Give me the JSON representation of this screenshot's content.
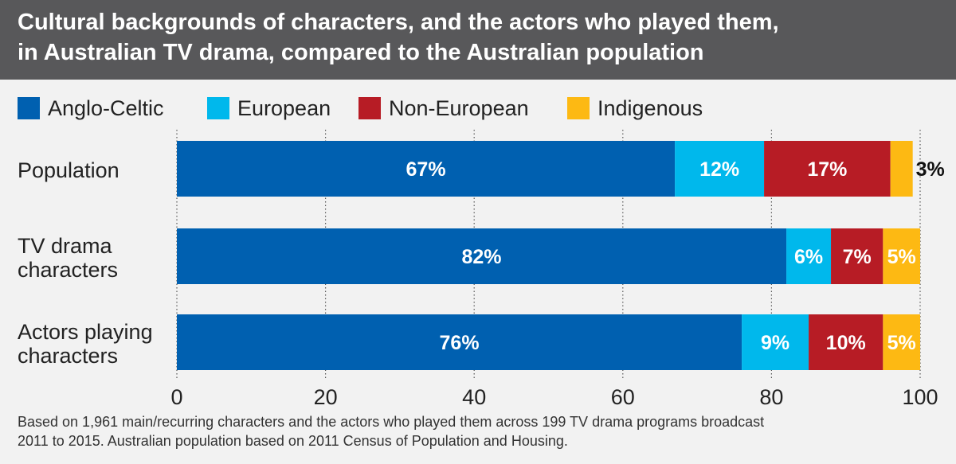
{
  "header": {
    "title_line1": "Cultural backgrounds of characters, and the actors who played them,",
    "title_line2": "in Australian TV drama, compared to the Australian population"
  },
  "colors": {
    "header_bg": "#58585a",
    "anglo_celtic": "#0060b0",
    "european": "#00b8ec",
    "non_european": "#b71c25",
    "indigenous": "#fdb913",
    "gridline": "#555555"
  },
  "legend": [
    {
      "label": "Anglo-Celtic",
      "color": "#0060b0"
    },
    {
      "label": "European",
      "color": "#00b8ec"
    },
    {
      "label": "Non-European",
      "color": "#b71c25"
    },
    {
      "label": "Indigenous",
      "color": "#fdb913"
    }
  ],
  "rows": [
    {
      "label_line1": "Population",
      "label_line2": ""
    },
    {
      "label_line1": "TV drama",
      "label_line2": "characters"
    },
    {
      "label_line1": "Actors playing",
      "label_line2": "characters"
    }
  ],
  "chart_data": {
    "type": "bar",
    "orientation": "horizontal",
    "stacked": true,
    "categories": [
      "Population",
      "TV drama characters",
      "Actors playing characters"
    ],
    "series": [
      {
        "name": "Anglo-Celtic",
        "values": [
          67,
          82,
          76
        ],
        "labels": [
          "67%",
          "82%",
          "76%"
        ]
      },
      {
        "name": "European",
        "values": [
          12,
          6,
          9
        ],
        "labels": [
          "12%",
          "6%",
          "9%"
        ]
      },
      {
        "name": "Non-European",
        "values": [
          17,
          7,
          10
        ],
        "labels": [
          "17%",
          "7%",
          "10%"
        ]
      },
      {
        "name": "Indigenous",
        "values": [
          3,
          5,
          5
        ],
        "labels": [
          "3%",
          "5%",
          "5%"
        ]
      }
    ],
    "xlim": [
      0,
      100
    ],
    "xticks": [
      "0",
      "20",
      "40",
      "60",
      "80",
      "100"
    ],
    "grid": true
  },
  "footnote": {
    "line1": "Based on 1,961 main/recurring characters and the actors who played them across 199 TV drama programs broadcast",
    "line2": "2011 to 2015. Australian population based on 2011 Census of Population and Housing."
  }
}
